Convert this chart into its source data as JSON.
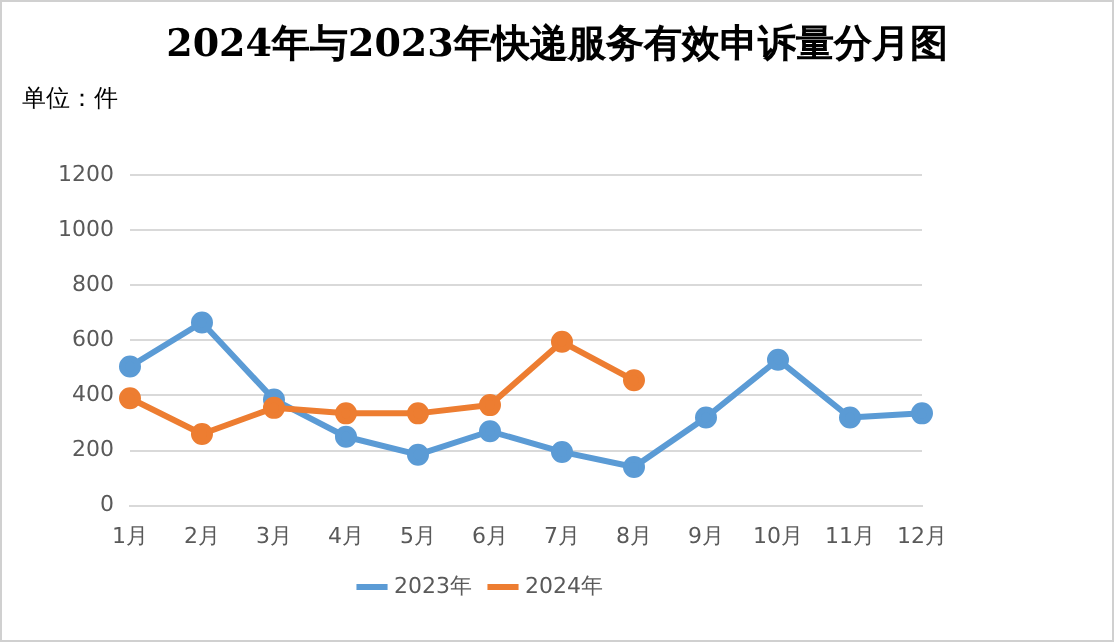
{
  "chart_data": {
    "type": "line",
    "title": "2024年与2023年快递服务有效申诉量分月图",
    "ylabel": "单位：件",
    "categories": [
      "1月",
      "2月",
      "3月",
      "4月",
      "5月",
      "6月",
      "7月",
      "8月",
      "9月",
      "10月",
      "11月",
      "12月"
    ],
    "series": [
      {
        "name": "2023年",
        "color": "#5b9bd5",
        "values": [
          505,
          665,
          385,
          250,
          185,
          270,
          195,
          140,
          320,
          530,
          320,
          335
        ]
      },
      {
        "name": "2024年",
        "color": "#ed7d31",
        "values": [
          390,
          260,
          355,
          335,
          335,
          365,
          595,
          455,
          null,
          null,
          null,
          null
        ]
      }
    ],
    "ylim": [
      0,
      1200
    ],
    "yticks": [
      0,
      200,
      400,
      600,
      800,
      1000,
      1200
    ],
    "grid": "y",
    "legend": "bottom",
    "marker": "circle",
    "line_style": "solid"
  }
}
